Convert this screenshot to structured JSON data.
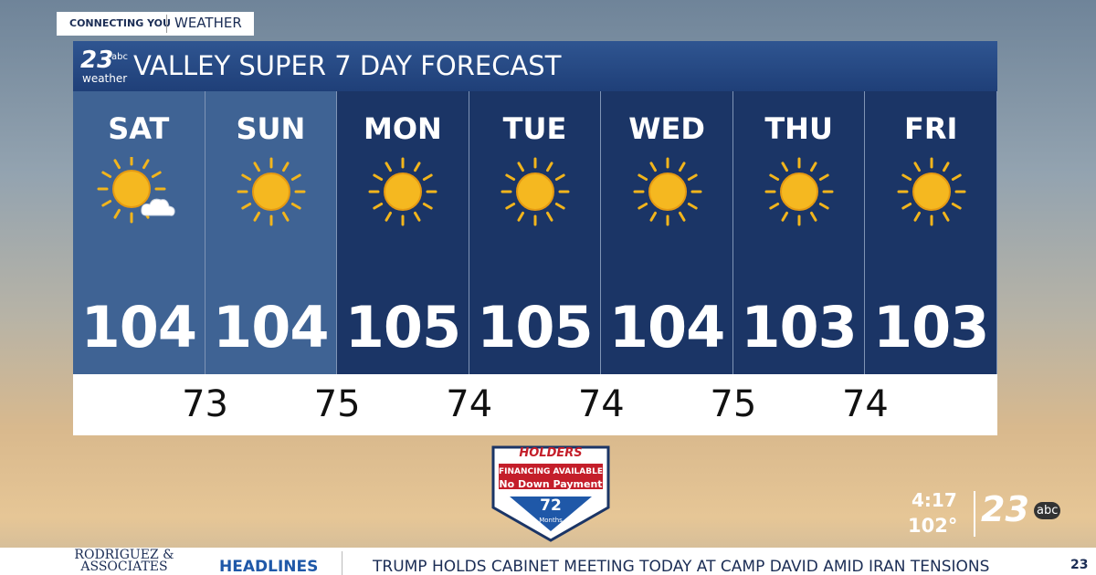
{
  "tag": {
    "left": "CONNECTING YOU",
    "right": "WEATHER"
  },
  "logo": {
    "number": "23",
    "network": "abc",
    "sub": "weather"
  },
  "title": "VALLEY SUPER 7 DAY FORECAST",
  "days": [
    {
      "name": "SAT",
      "high": 104,
      "icon": "sun-cloud",
      "shade": "#3f6394"
    },
    {
      "name": "SUN",
      "high": 104,
      "icon": "sun",
      "shade": "#3f6394"
    },
    {
      "name": "MON",
      "high": 105,
      "icon": "sun",
      "shade": "#1b3566"
    },
    {
      "name": "TUE",
      "high": 105,
      "icon": "sun",
      "shade": "#1b3566"
    },
    {
      "name": "WED",
      "high": 104,
      "icon": "sun",
      "shade": "#1b3566"
    },
    {
      "name": "THU",
      "high": 103,
      "icon": "sun",
      "shade": "#1b3566"
    },
    {
      "name": "FRI",
      "high": 103,
      "icon": "sun",
      "shade": "#1b3566"
    }
  ],
  "lows": [
    73,
    75,
    74,
    74,
    75,
    74
  ],
  "ad": {
    "brand": "HOLDERS",
    "line1": "FINANCING AVAILABLE",
    "line2": "No Down Payment",
    "months": "72",
    "months_label": "Months"
  },
  "corner": {
    "time": "4:17",
    "temp": "102°",
    "logo": "23",
    "network": "abc"
  },
  "ticker": {
    "sponsor": "RODRIGUEZ & ASSOCIATES",
    "label": "HEADLINES",
    "headline": "TRUMP HOLDS CABINET MEETING TODAY AT CAMP DAVID AMID IRAN TENSIONS",
    "logo": "23"
  }
}
